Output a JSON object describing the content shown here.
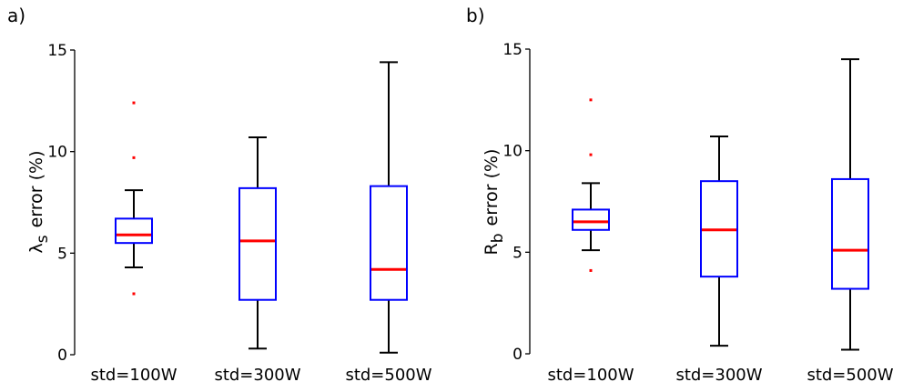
{
  "chart_data": [
    {
      "type": "box",
      "panel_label": "a)",
      "ylabel_symbol": "λ",
      "ylabel_subscript": "s",
      "ylabel_text": "error (%)",
      "ylim": [
        0,
        15
      ],
      "yticks": [
        0,
        5,
        10,
        15
      ],
      "categories": [
        "std=100W",
        "std=300W",
        "std=500W"
      ],
      "boxes": [
        {
          "whisker_low": 4.3,
          "q1": 5.5,
          "median": 5.9,
          "q3": 6.7,
          "whisker_high": 8.1,
          "outliers": [
            3.0,
            9.7,
            12.4
          ]
        },
        {
          "whisker_low": 0.3,
          "q1": 2.7,
          "median": 5.6,
          "q3": 8.2,
          "whisker_high": 10.7,
          "outliers": []
        },
        {
          "whisker_low": 0.1,
          "q1": 2.7,
          "median": 4.2,
          "q3": 8.3,
          "whisker_high": 14.4,
          "outliers": []
        }
      ],
      "box_color": "#0000ff",
      "median_color": "#ff0000",
      "whisker_color": "#000000",
      "outlier_color": "#ff0000"
    },
    {
      "type": "box",
      "panel_label": "b)",
      "ylabel_symbol": "R",
      "ylabel_subscript": "b",
      "ylabel_text": "error (%)",
      "ylim": [
        0,
        15
      ],
      "yticks": [
        0,
        5,
        10,
        15
      ],
      "categories": [
        "std=100W",
        "std=300W",
        "std=500W"
      ],
      "boxes": [
        {
          "whisker_low": 5.1,
          "q1": 6.1,
          "median": 6.5,
          "q3": 7.1,
          "whisker_high": 8.4,
          "outliers": [
            4.1,
            9.8,
            12.5
          ]
        },
        {
          "whisker_low": 0.4,
          "q1": 3.8,
          "median": 6.1,
          "q3": 8.5,
          "whisker_high": 10.7,
          "outliers": []
        },
        {
          "whisker_low": 0.2,
          "q1": 3.2,
          "median": 5.1,
          "q3": 8.6,
          "whisker_high": 14.5,
          "outliers": []
        }
      ],
      "box_color": "#0000ff",
      "median_color": "#ff0000",
      "whisker_color": "#000000",
      "outlier_color": "#ff0000"
    }
  ]
}
